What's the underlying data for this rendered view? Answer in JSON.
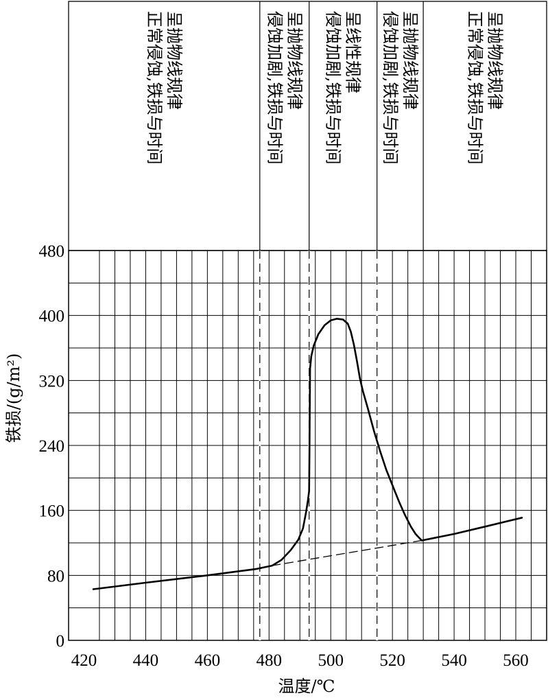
{
  "chart_data": {
    "type": "line",
    "xlabel": "温度/℃",
    "ylabel": "铁损/(g/m²)",
    "xlim": [
      415,
      570
    ],
    "ylim": [
      0,
      480
    ],
    "xticks": [
      420,
      440,
      460,
      480,
      500,
      520,
      540,
      560
    ],
    "yticks": [
      0,
      80,
      160,
      240,
      320,
      400,
      480
    ],
    "grid": true,
    "boundaries": [
      {
        "x": 477,
        "style": "dashed"
      },
      {
        "x": 493,
        "style": "dashed"
      },
      {
        "x": 515,
        "style": "dashed"
      }
    ],
    "regions": [
      {
        "x_from": 415,
        "x_to": 477,
        "lines": [
          "正常侵蚀,铁损与时间",
          "呈抛物线规律"
        ]
      },
      {
        "x_from": 477,
        "x_to": 493,
        "lines": [
          "侵蚀加剧,铁损与时间",
          "呈抛物线规律"
        ]
      },
      {
        "x_from": 493,
        "x_to": 515,
        "lines": [
          "侵蚀加剧,铁损与时间",
          "呈线性规律"
        ]
      },
      {
        "x_from": 515,
        "x_to": 530,
        "lines": [
          "侵蚀加剧,铁损与时间",
          "呈抛物线规律"
        ]
      },
      {
        "x_from": 530,
        "x_to": 570,
        "lines": [
          "正常侵蚀,铁损与时间",
          "呈抛物线规律"
        ]
      }
    ],
    "series": [
      {
        "style": "solid",
        "x": [
          423,
          440,
          460,
          470,
          476,
          481,
          484,
          487,
          489.5,
          491,
          492,
          492.6,
          493.0,
          493.1,
          493.2,
          493.3,
          493.7,
          494.5,
          496,
          498,
          500,
          502,
          504,
          505.5,
          506.5,
          507.5,
          508.5,
          509.5,
          510.5,
          512,
          514,
          516,
          518,
          520,
          522,
          524,
          526,
          527.5,
          529.5,
          540,
          550,
          562
        ],
        "y": [
          63,
          71,
          80,
          85,
          88,
          92,
          99,
          111,
          124,
          138,
          158,
          172,
          184,
          230,
          280,
          335,
          350,
          363,
          377,
          388,
          394,
          396,
          395,
          390,
          380,
          364,
          344,
          322,
          306,
          286,
          258,
          233,
          210,
          191,
          172,
          155,
          140,
          131,
          123,
          131,
          140,
          151
        ]
      },
      {
        "style": "dashed",
        "x": [
          481,
          529.5
        ],
        "y": [
          92,
          123
        ]
      }
    ]
  }
}
